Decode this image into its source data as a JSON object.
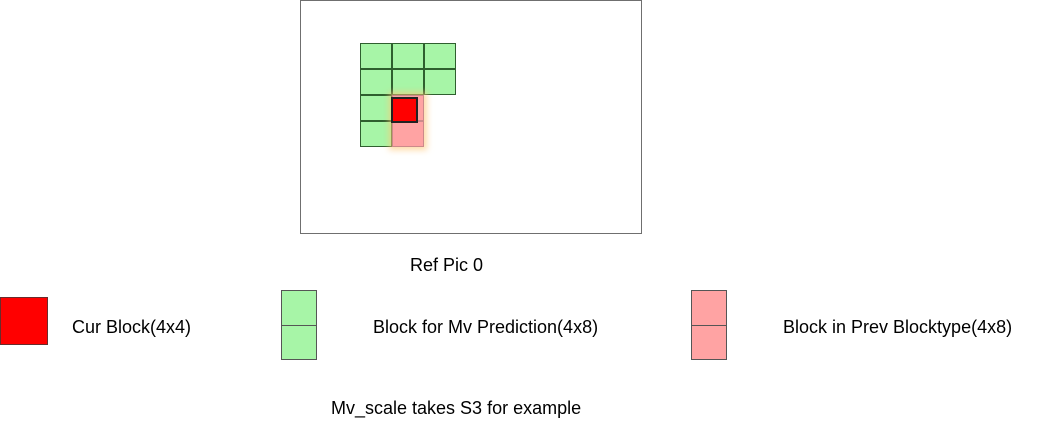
{
  "diagram": {
    "frame_label": "Ref Pic 0",
    "legend": [
      {
        "label": "Cur Block(4x4)",
        "color": "#ff0000"
      },
      {
        "label": "Block for Mv Prediction(4x8)",
        "color": "#a7f5a7"
      },
      {
        "label": "Block in Prev Blocktype(4x8)",
        "color": "#ffa3a3"
      }
    ],
    "caption": "Mv_scale takes S3 for example"
  }
}
